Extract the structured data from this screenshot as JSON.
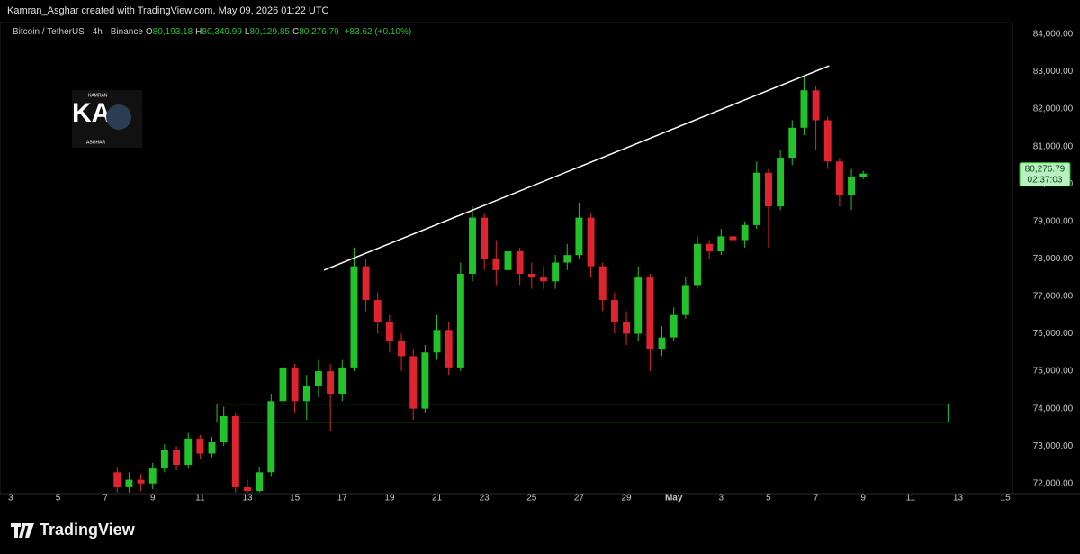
{
  "header": "Kamran_Asghar created with TradingView.com, May 09, 2026 01:22 UTC",
  "footer": "TradingView",
  "logo": {
    "top": "KAMRAN",
    "main": "KA",
    "bottom": "ASGHAR"
  },
  "chart_data": {
    "type": "candlestick",
    "title": "Bitcoin / TetherUS · 4h · Binance",
    "ohlc": [
      {
        "label": "O",
        "value": "80,193.18"
      },
      {
        "label": "H",
        "value": "80,349.99"
      },
      {
        "label": "L",
        "value": "80,129.85"
      },
      {
        "label": "C",
        "value": "80,276.79"
      }
    ],
    "change": "+83.62 (+0.10%)",
    "up_color": "#22c32a",
    "down_color": "#e0242f",
    "x": [
      7.5,
      8,
      8.5,
      9,
      9.5,
      10,
      10.5,
      11,
      11.5,
      12,
      12.5,
      13,
      13.5,
      14,
      14.5,
      15,
      15.5,
      16,
      16.5,
      17,
      17.5,
      18,
      18.5,
      19,
      19.5,
      20,
      20.5,
      21,
      21.5,
      22,
      22.5,
      23,
      23.5,
      24,
      24.5,
      25,
      25.5,
      26,
      26.5,
      27,
      27.5,
      28,
      28.5,
      29,
      29.5,
      30,
      30.5,
      31,
      31.5,
      32,
      32.5,
      33,
      33.5,
      34,
      34.5,
      35,
      35.5,
      36,
      36.5,
      37,
      37.5,
      38,
      38.5,
      39
    ],
    "open": [
      72300,
      71900,
      72100,
      72000,
      72400,
      72900,
      72500,
      73200,
      72800,
      73100,
      73800,
      71900,
      71800,
      72300,
      74200,
      75100,
      74200,
      74600,
      75000,
      74400,
      75100,
      77800,
      76900,
      76300,
      75800,
      75400,
      74000,
      75500,
      76100,
      75100,
      77600,
      79100,
      78000,
      77700,
      78200,
      77600,
      77500,
      77400,
      77900,
      78100,
      79100,
      77800,
      76900,
      76300,
      76000,
      77500,
      75600,
      75900,
      76500,
      77300,
      78400,
      78200,
      78600,
      78500,
      78900,
      80300,
      79400,
      80700,
      81500,
      82500,
      81700,
      80600,
      79700,
      80193.18
    ],
    "high": [
      72450,
      72300,
      72250,
      72550,
      73050,
      73000,
      73350,
      73300,
      73250,
      74050,
      73900,
      72100,
      72450,
      74400,
      75600,
      75200,
      74900,
      75300,
      75200,
      75300,
      78300,
      78000,
      77100,
      76500,
      76000,
      75600,
      75700,
      76500,
      76300,
      77900,
      79400,
      79200,
      78500,
      78400,
      78300,
      77900,
      77800,
      78100,
      78400,
      79500,
      79200,
      77900,
      77100,
      76600,
      77800,
      77600,
      76200,
      76700,
      77500,
      78600,
      78500,
      78800,
      79100,
      79000,
      80600,
      80400,
      80900,
      81700,
      82850,
      82600,
      81800,
      80700,
      80400,
      80349.99
    ],
    "low": [
      71760,
      71760,
      71800,
      71850,
      72300,
      72350,
      72400,
      72650,
      72700,
      73000,
      71760,
      71760,
      71760,
      72200,
      74000,
      73900,
      73700,
      74300,
      73400,
      74200,
      75000,
      76600,
      76000,
      75500,
      75000,
      73700,
      73900,
      75300,
      74900,
      75000,
      77400,
      77700,
      77300,
      77500,
      77300,
      77200,
      77200,
      77200,
      77700,
      78000,
      77500,
      76600,
      76000,
      75700,
      75800,
      75000,
      75400,
      75800,
      76400,
      77200,
      78000,
      78100,
      78300,
      78300,
      78800,
      78300,
      79300,
      80500,
      81300,
      80900,
      80400,
      79400,
      79300,
      80129.85
    ],
    "close": [
      71900,
      72100,
      72000,
      72400,
      72900,
      72500,
      73200,
      72800,
      73100,
      73800,
      71900,
      71800,
      72300,
      74200,
      75100,
      74200,
      74600,
      75000,
      74400,
      75100,
      77800,
      76900,
      76300,
      75800,
      75400,
      74000,
      75500,
      76100,
      75100,
      77600,
      79100,
      78000,
      77700,
      78200,
      77600,
      77500,
      77400,
      77900,
      78100,
      79100,
      77800,
      76900,
      76300,
      76000,
      77500,
      75600,
      75900,
      76500,
      77300,
      78400,
      78200,
      78600,
      78500,
      78900,
      80300,
      79400,
      80700,
      81500,
      82500,
      81700,
      80600,
      79700,
      80193.18,
      80276.79
    ],
    "xlim": [
      2.55,
      45.3
    ],
    "xticks": [
      3,
      5,
      7,
      9,
      11,
      13,
      15,
      17,
      19,
      21,
      23,
      25,
      27,
      29,
      {
        "value": 31,
        "label": "May"
      },
      {
        "value": 33,
        "label": "3"
      },
      {
        "value": 35,
        "label": "5"
      },
      {
        "value": 37,
        "label": "7"
      },
      {
        "value": 39,
        "label": "9"
      },
      {
        "value": 41,
        "label": "11"
      },
      {
        "value": 43,
        "label": "13"
      },
      {
        "value": 45,
        "label": "15"
      }
    ],
    "ylim": [
      71730,
      84310
    ],
    "yticks": [
      {
        "value": 72000,
        "label": "72,000.00"
      },
      {
        "value": 73000,
        "label": "73,000.00"
      },
      {
        "value": 74000,
        "label": "74,000.00"
      },
      {
        "value": 75000,
        "label": "75,000.00"
      },
      {
        "value": 76000,
        "label": "76,000.00"
      },
      {
        "value": 77000,
        "label": "77,000.00"
      },
      {
        "value": 78000,
        "label": "78,000.00"
      },
      {
        "value": 79000,
        "label": "79,000.00"
      },
      {
        "value": 80000,
        "label": "80,000.00"
      },
      {
        "value": 81000,
        "label": "81,000.00"
      },
      {
        "value": 82000,
        "label": "82,000.00"
      },
      {
        "value": 83000,
        "label": "83,000.00"
      },
      {
        "value": 84000,
        "label": "84,000.00"
      }
    ],
    "grid": false,
    "trendline": {
      "x": [
        16.23,
        37.56
      ],
      "y": [
        77696,
        83155
      ],
      "color": "#ffffff"
    },
    "zone": {
      "x": [
        11.71,
        42.58
      ],
      "y": [
        73638,
        74121
      ],
      "color": "#22c32a"
    },
    "last_price": {
      "value": 80276.79,
      "label": "80,276.79"
    },
    "countdown": "02:37:03"
  }
}
